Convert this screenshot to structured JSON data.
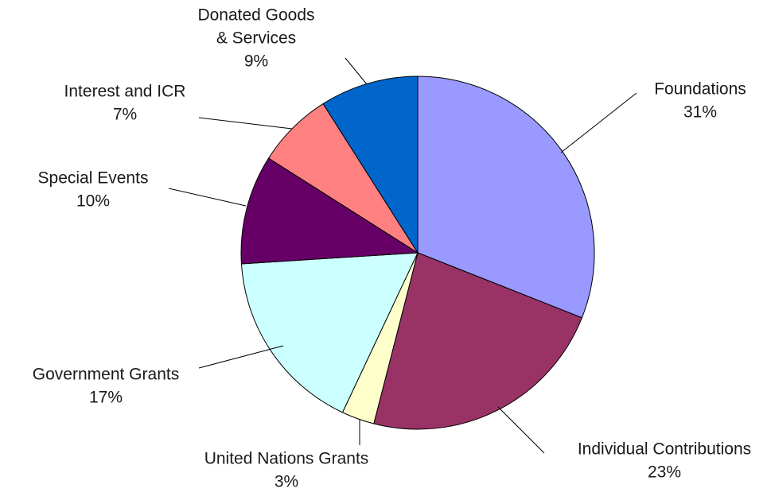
{
  "chart_data": {
    "type": "pie",
    "title": "",
    "start_angle_deg": 0,
    "direction": "clockwise",
    "slices": [
      {
        "label_lines": [
          "Foundations"
        ],
        "pct_text": "31%",
        "value": 31,
        "color": "#9999FF"
      },
      {
        "label_lines": [
          "Individual Contributions"
        ],
        "pct_text": "23%",
        "value": 23,
        "color": "#993366"
      },
      {
        "label_lines": [
          "United Nations Grants"
        ],
        "pct_text": "3%",
        "value": 3,
        "color": "#FFFFCC"
      },
      {
        "label_lines": [
          "Government Grants"
        ],
        "pct_text": "17%",
        "value": 17,
        "color": "#CCFFFF"
      },
      {
        "label_lines": [
          "Special Events"
        ],
        "pct_text": "10%",
        "value": 10,
        "color": "#660066"
      },
      {
        "label_lines": [
          "Interest and ICR"
        ],
        "pct_text": "7%",
        "value": 7,
        "color": "#FF8080"
      },
      {
        "label_lines": [
          "Donated Goods",
          "& Services"
        ],
        "pct_text": "9%",
        "value": 9,
        "color": "#0066CC"
      }
    ],
    "legend": "none",
    "labels": "outside with leader lines"
  }
}
